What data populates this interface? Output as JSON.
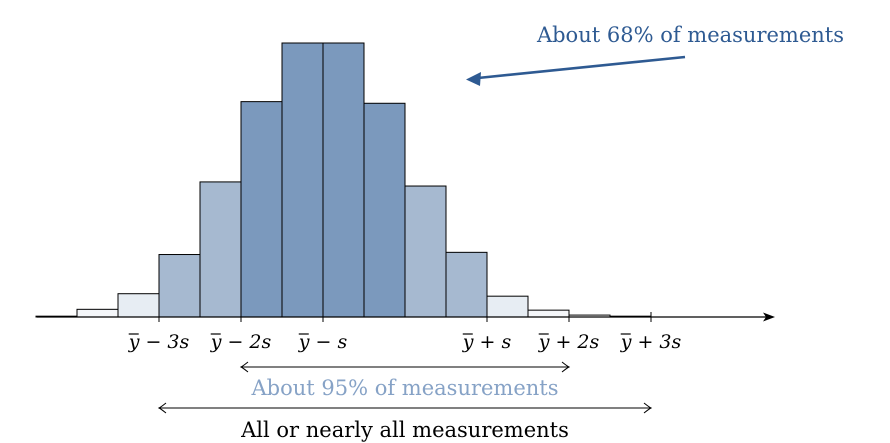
{
  "chart_data": {
    "type": "bar",
    "x": [
      -4.5,
      -3.5,
      -2.5,
      -1.5,
      -0.5,
      0.5,
      1.5,
      2.5,
      3.5,
      4.5,
      5.5,
      6.5,
      7.5,
      8.5,
      9.5
    ],
    "values": [
      0.3,
      2.8,
      8.5,
      22.8,
      49.3,
      78.6,
      100,
      100,
      78.0,
      47.8,
      23.6,
      7.6,
      2.5,
      0.7,
      0.3
    ],
    "bin_fill_colors": [
      "#ffffff",
      "#f4f6f9",
      "#e7edf3",
      "#a6b9d0",
      "#a6b9d0",
      "#7b99bd",
      "#7b99bd",
      "#7b99bd",
      "#7b99bd",
      "#a6b9d0",
      "#a6b9d0",
      "#e7edf3",
      "#f4f6f9",
      "#ffffff",
      "#ffffff"
    ],
    "tick_labels": [
      {
        "x": -2,
        "text": "y − 3s"
      },
      {
        "x": 0,
        "text": "y − 2s"
      },
      {
        "x": 2,
        "text": "y − s"
      },
      {
        "x": 6,
        "text": "y + s"
      },
      {
        "x": 8,
        "text": "y + 2s"
      },
      {
        "x": 10,
        "text": "y + 3s"
      }
    ],
    "annotations": {
      "one_sd": {
        "text": "About 68% of measurements",
        "color": "#2e5a92"
      },
      "two_sd": {
        "text": "About 95% of measurements",
        "x_range": [
          0,
          8
        ],
        "color": "#86a2c6"
      },
      "three_sd": {
        "text": "All or nearly all measurements",
        "x_range": [
          -2,
          10
        ],
        "color": "#000000"
      }
    },
    "xlim": [
      -5.9,
      15.1
    ],
    "ylim": [
      0,
      100
    ],
    "grid": false,
    "legend": "none"
  }
}
